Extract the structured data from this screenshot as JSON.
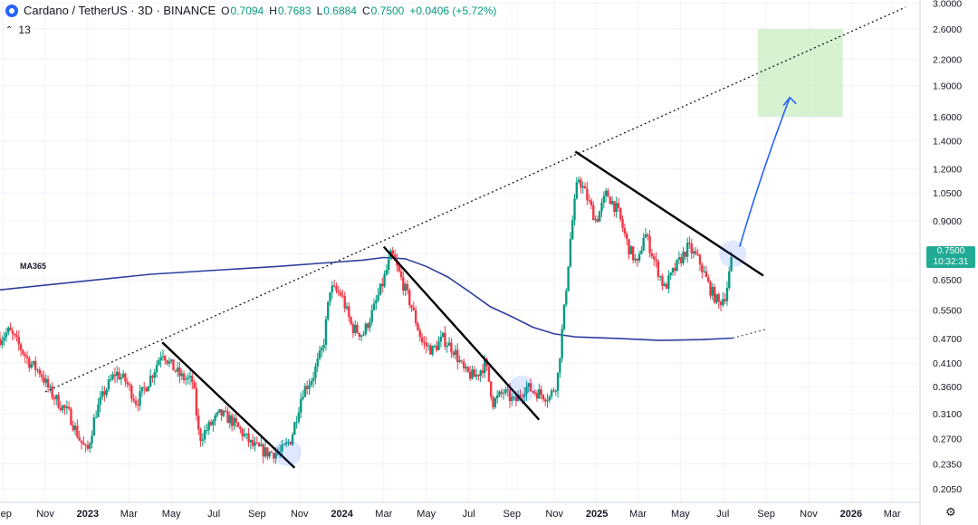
{
  "header": {
    "symbol": "Cardano / TetherUS · 3D · BINANCE",
    "o_key": "O",
    "o_val": "0.7094",
    "h_key": "H",
    "h_val": "0.7683",
    "l_key": "L",
    "l_val": "0.6884",
    "c_key": "C",
    "c_val": "0.7500",
    "change": "+0.0406 (+5.72%)"
  },
  "indicators": {
    "count": "13"
  },
  "ma_label": "MA365",
  "price_badge": {
    "price": "0.7500",
    "countdown": "10:32:31"
  },
  "colors": {
    "up": "#089981",
    "down": "#f23645",
    "ma": "#2e3f9e",
    "arrow": "#2962ff",
    "target_zone": "#c8edc1",
    "highlight": "#2962ff",
    "badge": "#22ab94"
  },
  "chart_data": {
    "type": "candlestick",
    "scale": "log",
    "ylim": [
      0.19,
      3.05
    ],
    "x_range": [
      "2022-08-28",
      "2026-04-10"
    ],
    "y_ticks": [
      "3.0000",
      "2.6000",
      "2.2000",
      "1.9000",
      "1.6000",
      "1.4000",
      "1.2000",
      "1.0500",
      "0.9000",
      "0.7500",
      "0.6500",
      "0.5500",
      "0.4700",
      "0.4100",
      "0.3600",
      "0.3100",
      "0.2700",
      "0.2350",
      "0.2050"
    ],
    "x_ticks": [
      {
        "date": "2022-09-01",
        "label": "Sep"
      },
      {
        "date": "2022-11-01",
        "label": "Nov"
      },
      {
        "date": "2023-01-01",
        "label": "2023"
      },
      {
        "date": "2023-03-01",
        "label": "Mar"
      },
      {
        "date": "2023-05-01",
        "label": "May"
      },
      {
        "date": "2023-07-01",
        "label": "Jul"
      },
      {
        "date": "2023-09-01",
        "label": "Sep"
      },
      {
        "date": "2023-11-01",
        "label": "Nov"
      },
      {
        "date": "2024-01-01",
        "label": "2024"
      },
      {
        "date": "2024-03-01",
        "label": "Mar"
      },
      {
        "date": "2024-05-01",
        "label": "May"
      },
      {
        "date": "2024-07-01",
        "label": "Jul"
      },
      {
        "date": "2024-09-01",
        "label": "Sep"
      },
      {
        "date": "2024-11-01",
        "label": "Nov"
      },
      {
        "date": "2025-01-01",
        "label": "2025"
      },
      {
        "date": "2025-03-01",
        "label": "Mar"
      },
      {
        "date": "2025-05-01",
        "label": "May"
      },
      {
        "date": "2025-07-01",
        "label": "Jul"
      },
      {
        "date": "2025-09-01",
        "label": "Sep"
      },
      {
        "date": "2025-11-01",
        "label": "Nov"
      },
      {
        "date": "2026-01-01",
        "label": "2026"
      },
      {
        "date": "2026-03-01",
        "label": "Mar"
      }
    ],
    "closes": [
      [
        "2022-08-28",
        0.47
      ],
      [
        "2022-09-10",
        0.49
      ],
      [
        "2022-09-25",
        0.45
      ],
      [
        "2022-10-10",
        0.41
      ],
      [
        "2022-10-25",
        0.39
      ],
      [
        "2022-11-08",
        0.35
      ],
      [
        "2022-11-20",
        0.33
      ],
      [
        "2022-12-05",
        0.31
      ],
      [
        "2022-12-20",
        0.27
      ],
      [
        "2022-12-31",
        0.25
      ],
      [
        "2023-01-12",
        0.31
      ],
      [
        "2023-01-25",
        0.35
      ],
      [
        "2023-02-10",
        0.39
      ],
      [
        "2023-02-25",
        0.37
      ],
      [
        "2023-03-12",
        0.33
      ],
      [
        "2023-03-25",
        0.36
      ],
      [
        "2023-04-08",
        0.4
      ],
      [
        "2023-04-18",
        0.44
      ],
      [
        "2023-04-28",
        0.41
      ],
      [
        "2023-05-15",
        0.38
      ],
      [
        "2023-06-01",
        0.37
      ],
      [
        "2023-06-10",
        0.27
      ],
      [
        "2023-06-25",
        0.29
      ],
      [
        "2023-07-10",
        0.31
      ],
      [
        "2023-07-25",
        0.3
      ],
      [
        "2023-08-10",
        0.28
      ],
      [
        "2023-08-25",
        0.26
      ],
      [
        "2023-09-15",
        0.25
      ],
      [
        "2023-10-05",
        0.25
      ],
      [
        "2023-10-20",
        0.27
      ],
      [
        "2023-11-05",
        0.35
      ],
      [
        "2023-11-20",
        0.38
      ],
      [
        "2023-12-05",
        0.45
      ],
      [
        "2023-12-15",
        0.62
      ],
      [
        "2023-12-31",
        0.6
      ],
      [
        "2024-01-15",
        0.5
      ],
      [
        "2024-01-31",
        0.48
      ],
      [
        "2024-02-15",
        0.55
      ],
      [
        "2024-03-01",
        0.65
      ],
      [
        "2024-03-12",
        0.75
      ],
      [
        "2024-03-25",
        0.66
      ],
      [
        "2024-04-10",
        0.56
      ],
      [
        "2024-04-25",
        0.46
      ],
      [
        "2024-05-10",
        0.44
      ],
      [
        "2024-05-25",
        0.47
      ],
      [
        "2024-06-10",
        0.44
      ],
      [
        "2024-06-25",
        0.39
      ],
      [
        "2024-07-10",
        0.38
      ],
      [
        "2024-07-25",
        0.41
      ],
      [
        "2024-08-05",
        0.33
      ],
      [
        "2024-08-20",
        0.35
      ],
      [
        "2024-09-05",
        0.33
      ],
      [
        "2024-09-20",
        0.36
      ],
      [
        "2024-10-05",
        0.35
      ],
      [
        "2024-10-25",
        0.34
      ],
      [
        "2024-11-05",
        0.37
      ],
      [
        "2024-11-15",
        0.55
      ],
      [
        "2024-11-25",
        0.85
      ],
      [
        "2024-12-05",
        1.15
      ],
      [
        "2024-12-15",
        1.05
      ],
      [
        "2024-12-31",
        0.9
      ],
      [
        "2025-01-15",
        1.05
      ],
      [
        "2025-01-31",
        0.95
      ],
      [
        "2025-02-15",
        0.78
      ],
      [
        "2025-03-01",
        0.7
      ],
      [
        "2025-03-10",
        0.85
      ],
      [
        "2025-03-25",
        0.72
      ],
      [
        "2025-04-08",
        0.62
      ],
      [
        "2025-04-25",
        0.7
      ],
      [
        "2025-05-12",
        0.78
      ],
      [
        "2025-05-28",
        0.72
      ],
      [
        "2025-06-12",
        0.62
      ],
      [
        "2025-06-25",
        0.57
      ],
      [
        "2025-07-05",
        0.6
      ],
      [
        "2025-07-15",
        0.75
      ]
    ],
    "ma365": [
      [
        "2022-08-28",
        0.615
      ],
      [
        "2023-04-01",
        0.67
      ],
      [
        "2023-10-01",
        0.7
      ],
      [
        "2024-02-01",
        0.725
      ],
      [
        "2024-03-01",
        0.735
      ],
      [
        "2024-04-01",
        0.73
      ],
      [
        "2024-05-01",
        0.7
      ],
      [
        "2024-06-01",
        0.66
      ],
      [
        "2024-07-01",
        0.61
      ],
      [
        "2024-08-01",
        0.56
      ],
      [
        "2024-09-01",
        0.53
      ],
      [
        "2024-10-01",
        0.5
      ],
      [
        "2024-11-01",
        0.482
      ],
      [
        "2024-12-01",
        0.474
      ],
      [
        "2025-02-01",
        0.47
      ],
      [
        "2025-04-01",
        0.465
      ],
      [
        "2025-06-01",
        0.467
      ],
      [
        "2025-07-15",
        0.471
      ]
    ],
    "ma365_projection": [
      [
        "2025-07-15",
        0.471
      ],
      [
        "2025-08-31",
        0.494
      ]
    ],
    "long_trendline": [
      [
        "2022-11-01",
        0.35
      ],
      [
        "2026-03-20",
        2.93
      ]
    ],
    "descending_lines": [
      [
        [
          "2023-04-18",
          0.46
        ],
        [
          "2023-10-25",
          0.23
        ]
      ],
      [
        [
          "2024-03-01",
          0.78
        ],
        [
          "2024-10-10",
          0.3
        ]
      ],
      [
        [
          "2024-12-01",
          1.32
        ],
        [
          "2025-08-28",
          0.665
        ]
      ]
    ],
    "breakout_markers": [
      [
        "2023-10-15",
        0.25
      ],
      [
        "2024-09-15",
        0.355
      ],
      [
        "2025-07-15",
        0.75
      ]
    ],
    "target_zone": {
      "x": [
        "2025-08-20",
        "2025-12-20"
      ],
      "y": [
        1.6,
        2.6
      ]
    },
    "projection_arrow": [
      [
        "2025-07-25",
        0.78
      ],
      [
        "2025-10-05",
        1.78
      ]
    ]
  }
}
